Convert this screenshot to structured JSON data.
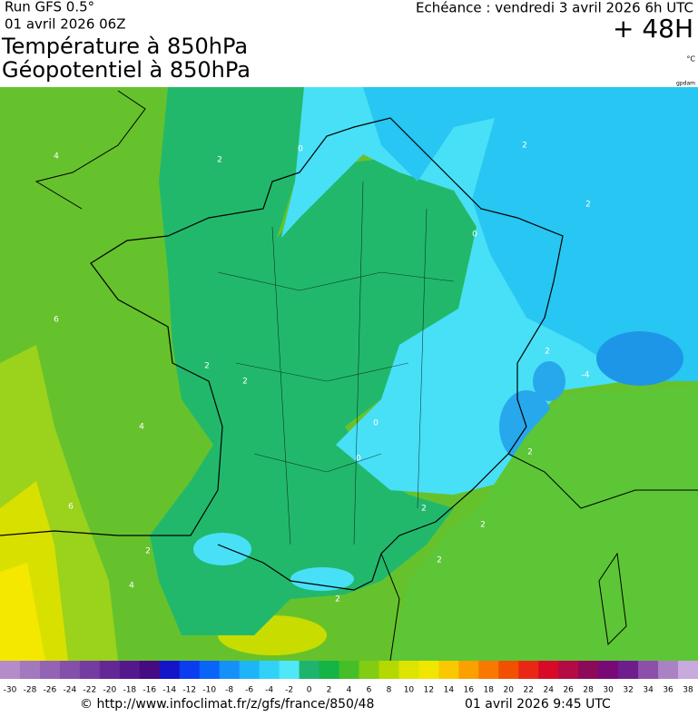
{
  "header": {
    "run": "Run GFS 0.5°",
    "run_date": "01 avril 2026 06Z",
    "title_line1": "Température à 850hPa",
    "title_line2": "Géopotentiel à 850hPa",
    "forecast": "Echéance : vendredi 3 avril 2026 6h UTC",
    "lead": "+ 48H",
    "unit": "°C",
    "geo_unit": "gpdam"
  },
  "map": {
    "contour_labels": [
      "4",
      "2",
      "0",
      "2",
      "6",
      "2",
      "4",
      "6",
      "2",
      "0",
      "2",
      "-4",
      "2",
      "0",
      "0",
      "2",
      "2",
      "2",
      "4",
      "2",
      "2",
      "2"
    ]
  },
  "scale": {
    "ticks": [
      -30,
      -28,
      -26,
      -24,
      -22,
      -20,
      -18,
      -16,
      -14,
      -12,
      -10,
      -8,
      -6,
      -4,
      -2,
      0,
      2,
      4,
      6,
      8,
      10,
      12,
      14,
      16,
      18,
      20,
      22,
      24,
      26,
      28,
      30,
      32,
      34,
      36,
      38
    ],
    "colors": [
      "#b48cc8",
      "#a478be",
      "#9464b4",
      "#8450aa",
      "#743ca0",
      "#642896",
      "#54188c",
      "#460a82",
      "#1414c8",
      "#0a3cf0",
      "#0a64f8",
      "#1490f8",
      "#1eb4f8",
      "#32d2f8",
      "#50e8f8",
      "#1eb46e",
      "#14b446",
      "#46be28",
      "#82cc14",
      "#b4d800",
      "#dce400",
      "#f0e600",
      "#fac800",
      "#faa000",
      "#f87800",
      "#f05000",
      "#e82814",
      "#d80a28",
      "#b40a46",
      "#8c0a5a",
      "#780a78",
      "#6e1e8c",
      "#8c50aa",
      "#aa82c4",
      "#c8aade"
    ]
  },
  "footer": {
    "source": "© http://www.infoclimat.fr/z/gfs/france/850/48",
    "generated": "01 avril 2026  9:45 UTC"
  }
}
